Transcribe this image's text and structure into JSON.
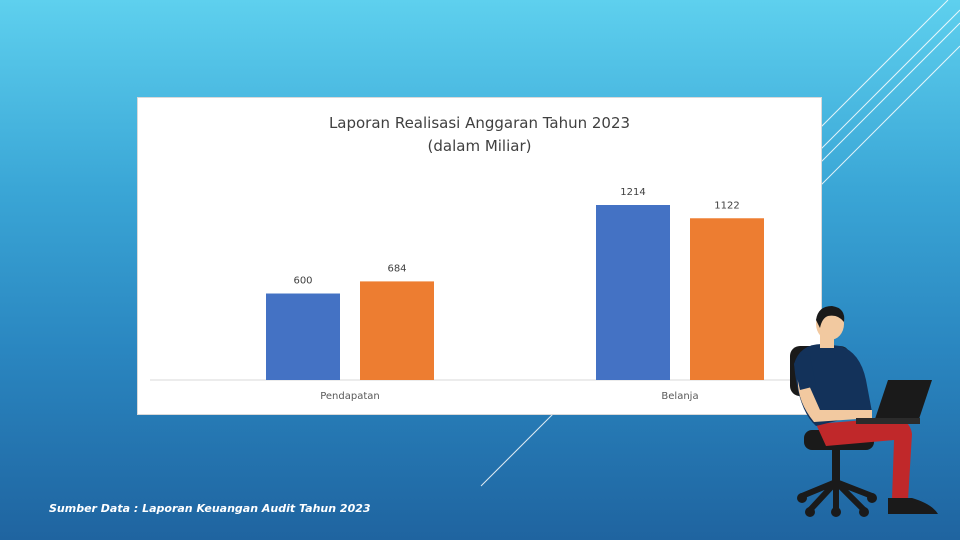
{
  "slide": {
    "source_note": "Sumber Data : Laporan Keuangan Audit Tahun 2023"
  },
  "chart_data": {
    "type": "bar",
    "title": "Laporan Realisasi Anggaran Tahun 2023",
    "subtitle": "(dalam Miliar)",
    "categories": [
      "Pendapatan",
      "Belanja"
    ],
    "series": [
      {
        "values": [
          600,
          1214
        ],
        "color": "#4472c4"
      },
      {
        "values": [
          684,
          1122
        ],
        "color": "#ed7d31"
      }
    ],
    "xlabel": "",
    "ylabel": "",
    "ylim": [
      0,
      1214
    ],
    "grid": false,
    "data_labels": true
  },
  "colors": {
    "background_top": "#5ed0ee",
    "background_bottom": "#1f64a0",
    "decorative_lines": "#ffffff"
  },
  "illustration": {
    "icon": "person-with-laptop-icon"
  }
}
